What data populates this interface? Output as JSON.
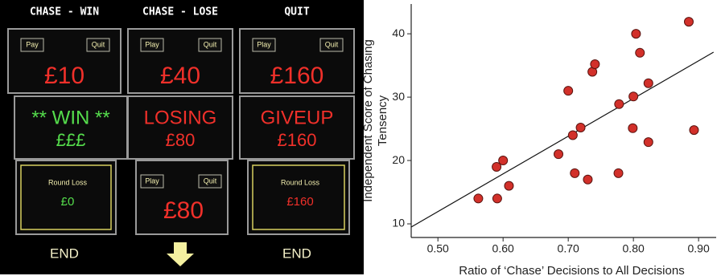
{
  "screens": [
    {
      "header": "CHASE - WIN",
      "top": {
        "buttons": [
          "Pay",
          "Quit"
        ],
        "amount": "£10"
      },
      "middle": {
        "lines": [
          "** WIN **",
          "£££"
        ],
        "color": "#55dd4c"
      },
      "bottom": {
        "label": "Round Loss",
        "amount": "£0",
        "color": "#55dd4c"
      },
      "footer": "END"
    },
    {
      "header": "CHASE - LOSE",
      "top": {
        "buttons": [
          "Play",
          "Quit"
        ],
        "amount": "£40"
      },
      "middle": {
        "lines": [
          "LOSING",
          "£80"
        ],
        "color": "#f0302a"
      },
      "bottom": {
        "buttons": [
          "Play",
          "Quit"
        ],
        "amount": "£80",
        "color": "#f0302a"
      }
    },
    {
      "header": "QUIT",
      "top": {
        "buttons": [
          "Play",
          "Quit"
        ],
        "amount": "£160"
      },
      "middle": {
        "lines": [
          "GIVEUP",
          "£160"
        ],
        "color": "#f0302a"
      },
      "bottom": {
        "label": "Round Loss",
        "amount": "£160",
        "color": "#f0302a"
      },
      "footer": "END"
    }
  ],
  "chart_data": {
    "type": "scatter",
    "x_label": "Ratio of ‘Chase’ Decisions to All Decisions",
    "y_label": [
      "Independent Score of Chasing",
      "Tensency"
    ],
    "x": [
      0.562,
      0.591,
      0.59,
      0.6,
      0.609,
      0.685,
      0.7,
      0.707,
      0.719,
      0.71,
      0.73,
      0.737,
      0.741,
      0.777,
      0.778,
      0.799,
      0.8,
      0.804,
      0.81,
      0.823,
      0.823,
      0.885,
      0.893
    ],
    "values": [
      14,
      14,
      19,
      20,
      16,
      21,
      31,
      24,
      25.2,
      18,
      17,
      34,
      35.2,
      18,
      28.9,
      25.1,
      30.1,
      40,
      37,
      32.2,
      22.9,
      41.9,
      24.8
    ],
    "color": "#d2302a",
    "trend_line": {
      "x": [
        0.459,
        0.923
      ],
      "y": [
        9.5,
        37.1
      ]
    },
    "xlim": [
      0.459,
      0.927
    ],
    "ylim": [
      7.85,
      44.7
    ],
    "xticks": [
      {
        "value": 0.5,
        "label": "0.50"
      },
      {
        "value": 0.6,
        "label": "0.60"
      },
      {
        "value": 0.7,
        "label": "0.70"
      },
      {
        "value": 0.8,
        "label": "0.80"
      },
      {
        "value": 0.9,
        "label": "0.90"
      }
    ],
    "yticks": [
      10,
      20,
      30,
      40
    ]
  }
}
